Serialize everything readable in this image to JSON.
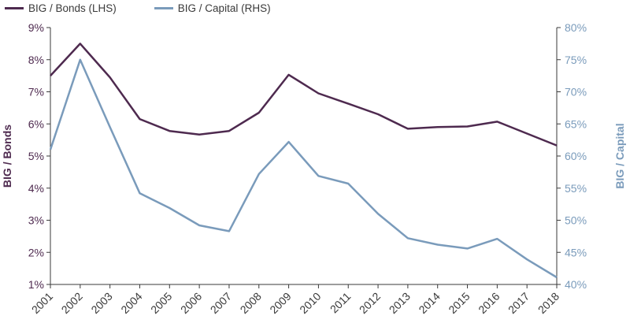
{
  "legend": {
    "bonds_label": "BIG / Bonds (LHS)",
    "capital_label": "BIG / Capital (RHS)"
  },
  "colors": {
    "bonds": "#4e2a4f",
    "capital": "#7a9bbb",
    "axis": "#3a3a3a",
    "left_ticks": "#4e2a4f",
    "right_ticks": "#7a9bbb"
  },
  "chart_data": {
    "type": "line",
    "title": "",
    "xlabel": "",
    "ylabel_left": "BIG / Bonds",
    "ylabel_right": "BIG / Capital",
    "grid": false,
    "legend_position": "top-left",
    "categories": [
      "2001",
      "2002",
      "2003",
      "2004",
      "2005",
      "2006",
      "2007",
      "2008",
      "2009",
      "2010",
      "2011",
      "2012",
      "2013",
      "2014",
      "2015",
      "2016",
      "2017",
      "2018"
    ],
    "ylim_left": [
      1,
      9
    ],
    "ylim_right": [
      40,
      80
    ],
    "yticks_left": [
      "1%",
      "2%",
      "3%",
      "4%",
      "5%",
      "6%",
      "7%",
      "8%",
      "9%"
    ],
    "yticks_right": [
      "40%",
      "45%",
      "50%",
      "55%",
      "60%",
      "65%",
      "70%",
      "75%",
      "80%"
    ],
    "series": [
      {
        "name": "BIG / Bonds (LHS)",
        "axis": "left",
        "values": [
          7.5,
          8.5,
          7.45,
          6.15,
          5.78,
          5.67,
          5.78,
          6.35,
          7.53,
          6.95,
          6.63,
          6.3,
          5.85,
          5.9,
          5.92,
          6.07,
          5.7,
          5.33
        ]
      },
      {
        "name": "BIG / Capital (RHS)",
        "axis": "right",
        "values": [
          61,
          75,
          64.5,
          54.2,
          51.9,
          49.2,
          48.3,
          57.2,
          62.2,
          56.9,
          55.7,
          51,
          47.2,
          46.2,
          45.6,
          47.1,
          43.9,
          41.1
        ]
      }
    ]
  }
}
